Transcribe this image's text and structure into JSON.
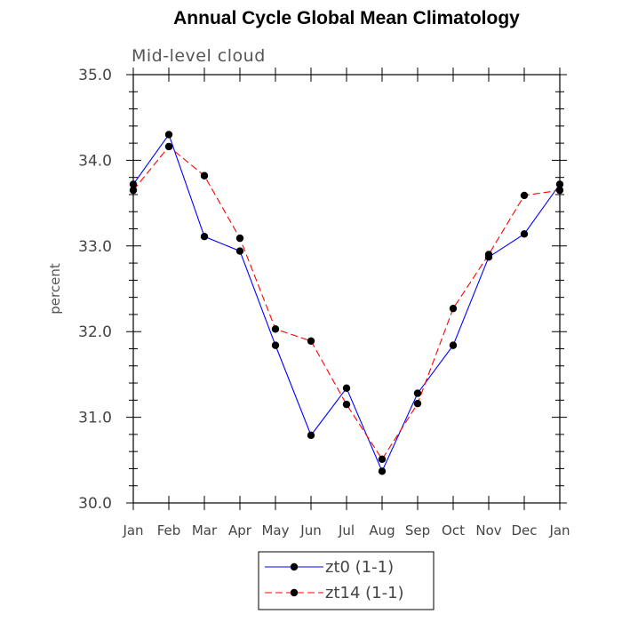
{
  "chart_data": {
    "type": "line",
    "title": "Annual Cycle Global Mean Climatology",
    "subtitle": "Mid-level cloud",
    "xlabel": "",
    "ylabel": "percent",
    "ylim": [
      30.0,
      35.0
    ],
    "yticks": [
      "30.0",
      "31.0",
      "32.0",
      "33.0",
      "34.0",
      "35.0"
    ],
    "categories": [
      "Jan",
      "Feb",
      "Mar",
      "Apr",
      "May",
      "Jun",
      "Jul",
      "Aug",
      "Sep",
      "Oct",
      "Nov",
      "Dec",
      "Jan"
    ],
    "series": [
      {
        "name": "zt0 (1-1)",
        "color": "#0000ff",
        "dash": "solid",
        "marker": "filled-circle",
        "values": [
          33.72,
          34.3,
          33.11,
          32.94,
          31.84,
          30.79,
          31.34,
          30.37,
          31.28,
          31.84,
          32.87,
          33.14,
          33.72
        ]
      },
      {
        "name": "zt14 (1-1)",
        "color": "#ff0000",
        "dash": "dashed",
        "marker": "filled-circle",
        "values": [
          33.65,
          34.16,
          33.82,
          33.09,
          32.03,
          31.89,
          31.15,
          30.51,
          31.16,
          32.27,
          32.9,
          33.59,
          33.65
        ]
      }
    ],
    "legend_position": "bottom-center"
  }
}
